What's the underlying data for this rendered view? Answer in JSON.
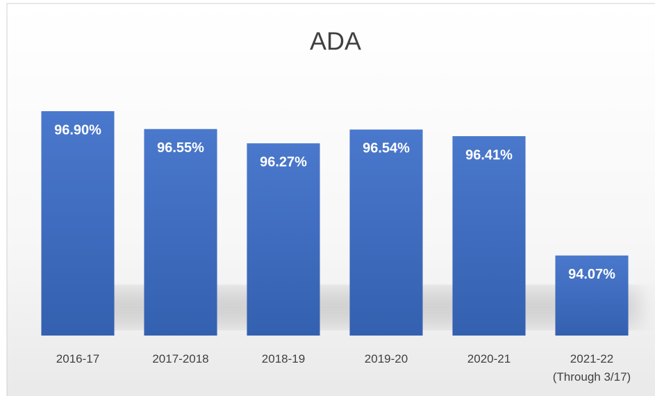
{
  "chart_data": {
    "type": "bar",
    "title": "ADA",
    "categories": [
      "2016-17",
      "2017-2018",
      "2018-19",
      "2019-20",
      "2020-21",
      "2021-22\n(Through 3/17)"
    ],
    "values": [
      96.9,
      96.55,
      96.27,
      96.54,
      96.41,
      94.07
    ],
    "value_labels": [
      "96.90%",
      "96.55%",
      "96.27%",
      "96.54%",
      "96.41%",
      "94.07%"
    ],
    "color": "#4472c4",
    "ylim": [
      92.5,
      97.5
    ]
  }
}
